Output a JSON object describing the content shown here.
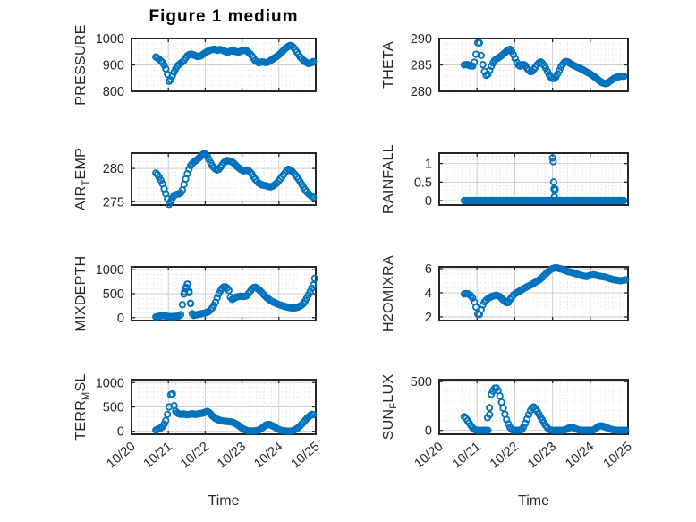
{
  "figure": {
    "title": "Figure 1 medium",
    "background": "#ffffff"
  },
  "colors": {
    "marker": "#0072BD",
    "axes_text": "#262626",
    "frame": "#262626",
    "grid_major": "#cfcfcf",
    "grid_minor": "#dadada"
  },
  "axes": {
    "xlabel": "Time",
    "xlim": [
      0,
      5
    ],
    "xticks": [
      0,
      1,
      2,
      3,
      4,
      5
    ],
    "xtick_labels": [
      "10/20",
      "10/21",
      "10/22",
      "10/23",
      "10/24",
      "10/25"
    ],
    "xminor_step": 0.2,
    "sample_step": 0.045
  },
  "chart_data": [
    {
      "type": "scatter",
      "name": "pressure",
      "ylabel": {
        "pre": "PRESSURE",
        "sub": "",
        "post": ""
      },
      "ylim": [
        800,
        1000
      ],
      "yticks": [
        800,
        900,
        1000
      ],
      "ytick_labels": [
        "800",
        "900",
        "1000"
      ],
      "yminor_step": 20,
      "x": [
        0.66,
        0.75,
        0.85,
        0.92,
        0.98,
        1.03,
        1.07,
        1.12,
        1.18,
        1.25,
        1.33,
        1.42,
        1.5,
        1.58,
        1.65,
        1.72,
        1.8,
        1.88,
        1.95,
        2.05,
        2.15,
        2.25,
        2.32,
        2.4,
        2.5,
        2.6,
        2.7,
        2.8,
        2.9,
        3.0,
        3.08,
        3.15,
        3.25,
        3.35,
        3.45,
        3.55,
        3.65,
        3.75,
        3.85,
        3.95,
        4.05,
        4.15,
        4.25,
        4.32,
        4.4,
        4.5,
        4.6,
        4.7,
        4.8,
        4.88,
        4.97
      ],
      "y": [
        930,
        922,
        908,
        890,
        862,
        832,
        845,
        862,
        880,
        897,
        906,
        916,
        933,
        941,
        940,
        936,
        931,
        934,
        941,
        950,
        957,
        960,
        955,
        959,
        954,
        948,
        953,
        952,
        948,
        954,
        957,
        951,
        938,
        917,
        908,
        912,
        908,
        914,
        924,
        933,
        944,
        959,
        970,
        975,
        966,
        946,
        926,
        913,
        905,
        908,
        916
      ],
      "extra_x": [],
      "extra_y": []
    },
    {
      "type": "scatter",
      "name": "theta",
      "ylabel": {
        "pre": "THETA",
        "sub": "",
        "post": ""
      },
      "ylim": [
        280,
        290
      ],
      "yticks": [
        280,
        285,
        290
      ],
      "ytick_labels": [
        "280",
        "285",
        "290"
      ],
      "yminor_step": 1,
      "x": [
        0.66,
        0.74,
        0.82,
        0.9,
        0.96,
        1.0,
        1.04,
        1.07,
        1.1,
        1.14,
        1.18,
        1.23,
        1.27,
        1.32,
        1.4,
        1.48,
        1.56,
        1.64,
        1.72,
        1.8,
        1.87,
        1.93,
        2.0,
        2.07,
        2.13,
        2.2,
        2.27,
        2.34,
        2.41,
        2.47,
        2.54,
        2.61,
        2.68,
        2.75,
        2.82,
        2.89,
        2.96,
        3.03,
        3.1,
        3.17,
        3.24,
        3.31,
        3.38,
        3.46,
        3.56,
        3.68,
        3.8,
        3.92,
        4.02,
        4.12,
        4.22,
        4.32,
        4.42,
        4.52,
        4.62,
        4.72,
        4.82,
        4.92
      ],
      "y": [
        285,
        285.1,
        284.8,
        284.8,
        286.2,
        288.4,
        290,
        289,
        287.2,
        285.6,
        284.2,
        283.1,
        282.9,
        283.7,
        285.1,
        286,
        286.3,
        286.7,
        287.2,
        287.7,
        288,
        287.5,
        286.4,
        285.2,
        284.7,
        285.1,
        285,
        284.2,
        283.7,
        283.8,
        284.5,
        285.2,
        285.6,
        285.2,
        284.4,
        283.4,
        282.6,
        282.3,
        282.8,
        283.8,
        284.8,
        285.5,
        285.7,
        285.3,
        284.9,
        284.5,
        284.1,
        283.6,
        283.2,
        282.7,
        282.1,
        281.6,
        281.4,
        281.9,
        282.4,
        282.7,
        282.9,
        282.8
      ],
      "extra_x": [],
      "extra_y": []
    },
    {
      "type": "scatter",
      "name": "airtemp",
      "ylabel": {
        "pre": "AIR",
        "sub": "T",
        "post": "EMP"
      },
      "ylim": [
        274.5,
        282.3
      ],
      "yticks": [
        275,
        280
      ],
      "ytick_labels": [
        "275",
        "280"
      ],
      "yminor_step": 1,
      "x": [
        0.66,
        0.72,
        0.78,
        0.84,
        0.9,
        0.96,
        1.02,
        1.08,
        1.14,
        1.22,
        1.3,
        1.36,
        1.42,
        1.48,
        1.55,
        1.62,
        1.7,
        1.78,
        1.86,
        1.93,
        1.99,
        2.06,
        2.13,
        2.2,
        2.28,
        2.35,
        2.43,
        2.51,
        2.59,
        2.67,
        2.76,
        2.86,
        2.95,
        3.05,
        3.15,
        3.25,
        3.35,
        3.45,
        3.55,
        3.65,
        3.76,
        3.86,
        3.96,
        4.06,
        4.16,
        4.25,
        4.33,
        4.42,
        4.52,
        4.62,
        4.72,
        4.82,
        4.9,
        4.97
      ],
      "y": [
        279.3,
        279,
        278.4,
        277.7,
        276.7,
        275.7,
        274.6,
        275.2,
        275.9,
        276.1,
        276.2,
        276.4,
        277.5,
        278.6,
        279.8,
        280.6,
        281,
        281.3,
        281.7,
        282.1,
        282.3,
        281.8,
        281,
        280.3,
        279.9,
        279.7,
        280.3,
        280.9,
        281.2,
        281.1,
        280.9,
        280.3,
        279.9,
        279.6,
        279.8,
        279.3,
        278.4,
        277.8,
        277.5,
        277.4,
        277.2,
        277.4,
        277.9,
        278.6,
        279.3,
        279.9,
        279.7,
        279.2,
        278.5,
        277.6,
        276.7,
        276.1,
        275.8,
        275.5
      ],
      "extra_x": [],
      "extra_y": []
    },
    {
      "type": "scatter",
      "name": "rainfall",
      "ylabel": {
        "pre": "RAINFALL",
        "sub": "",
        "post": ""
      },
      "ylim": [
        -0.12,
        1.28
      ],
      "yticks": [
        0,
        0.5,
        1
      ],
      "ytick_labels": [
        "0",
        "0.5",
        "1"
      ],
      "yminor_step": 0.1,
      "x": [
        0.66,
        4.93
      ],
      "y": [
        0,
        0
      ],
      "extra_x": [
        3.0,
        3.02,
        3.03,
        3.04,
        3.05,
        3.06,
        3.07,
        3.05
      ],
      "extra_y": [
        1.15,
        1.05,
        0.5,
        0.32,
        0.3,
        0.28,
        0.31,
        0.1
      ]
    },
    {
      "type": "scatter",
      "name": "mixdepth",
      "ylabel": {
        "pre": "MIXDEPTH",
        "sub": "",
        "post": ""
      },
      "ylim": [
        -60,
        1060
      ],
      "yticks": [
        0,
        500,
        1000
      ],
      "ytick_labels": [
        "0",
        "500",
        "1000"
      ],
      "yminor_step": 100,
      "x": [
        0.66,
        0.75,
        0.85,
        0.95,
        1.05,
        1.15,
        1.25,
        1.33,
        1.38,
        1.42,
        1.46,
        1.5,
        1.53,
        1.57,
        1.61,
        1.66,
        1.72,
        1.8,
        1.88,
        1.96,
        2.04,
        2.12,
        2.2,
        2.28,
        2.35,
        2.42,
        2.48,
        2.54,
        2.6,
        2.65,
        2.7,
        2.76,
        2.83,
        2.9,
        2.98,
        3.06,
        3.14,
        3.21,
        3.28,
        3.35,
        3.42,
        3.49,
        3.57,
        3.65,
        3.74,
        3.83,
        3.92,
        4.01,
        4.1,
        4.2,
        4.3,
        4.4,
        4.5,
        4.6,
        4.68,
        4.76,
        4.83,
        4.89,
        4.94
      ],
      "y": [
        15,
        30,
        45,
        30,
        20,
        25,
        30,
        40,
        270,
        480,
        580,
        690,
        705,
        500,
        265,
        35,
        50,
        65,
        80,
        90,
        105,
        140,
        210,
        320,
        470,
        570,
        640,
        650,
        615,
        555,
        370,
        390,
        425,
        440,
        450,
        440,
        465,
        540,
        615,
        640,
        610,
        560,
        495,
        430,
        375,
        330,
        300,
        270,
        248,
        225,
        208,
        200,
        212,
        250,
        305,
        415,
        520,
        615,
        690
      ],
      "extra_x": [
        1.44,
        1.48,
        1.52,
        1.56,
        1.6,
        4.97
      ],
      "extra_y": [
        545,
        635,
        700,
        520,
        300,
        820
      ]
    },
    {
      "type": "scatter",
      "name": "h2omixra",
      "ylabel": {
        "pre": "H2OMIXRA",
        "sub": "",
        "post": ""
      },
      "ylim": [
        1.7,
        6.15
      ],
      "yticks": [
        2,
        4,
        6
      ],
      "ytick_labels": [
        "2",
        "4",
        "6"
      ],
      "yminor_step": 0.4,
      "x": [
        0.66,
        0.72,
        0.78,
        0.84,
        0.9,
        0.96,
        1.0,
        1.04,
        1.08,
        1.14,
        1.2,
        1.28,
        1.36,
        1.44,
        1.52,
        1.6,
        1.68,
        1.76,
        1.82,
        1.88,
        1.94,
        2.0,
        2.08,
        2.16,
        2.24,
        2.32,
        2.4,
        2.48,
        2.56,
        2.64,
        2.72,
        2.8,
        2.88,
        2.96,
        3.04,
        3.1,
        3.18,
        3.26,
        3.34,
        3.42,
        3.5,
        3.6,
        3.7,
        3.8,
        3.9,
        4.0,
        4.1,
        4.2,
        4.3,
        4.4,
        4.5,
        4.6,
        4.7,
        4.8,
        4.9,
        4.97
      ],
      "y": [
        3.9,
        3.95,
        3.9,
        3.75,
        3.5,
        3.0,
        2.5,
        2.0,
        2.3,
        2.9,
        3.25,
        3.5,
        3.65,
        3.75,
        3.8,
        3.7,
        3.45,
        3.2,
        3.15,
        3.45,
        3.75,
        3.9,
        4.05,
        4.2,
        4.35,
        4.5,
        4.6,
        4.75,
        4.9,
        5.05,
        5.25,
        5.5,
        5.75,
        5.95,
        6.05,
        6.1,
        6.0,
        5.95,
        5.85,
        5.75,
        5.7,
        5.6,
        5.5,
        5.4,
        5.35,
        5.45,
        5.5,
        5.4,
        5.35,
        5.3,
        5.2,
        5.1,
        5.05,
        5.0,
        5.05,
        5.1
      ],
      "extra_x": [],
      "extra_y": []
    },
    {
      "type": "scatter",
      "name": "terrmsl",
      "ylabel": {
        "pre": "TERR",
        "sub": "M",
        "post": "SL"
      },
      "ylim": [
        -60,
        1060
      ],
      "yticks": [
        0,
        500,
        1000
      ],
      "ytick_labels": [
        "0",
        "500",
        "1000"
      ],
      "yminor_step": 100,
      "x": [
        0.66,
        0.72,
        0.78,
        0.84,
        0.88,
        0.92,
        0.95,
        0.98,
        1.01,
        1.04,
        1.07,
        1.09,
        1.12,
        1.15,
        1.18,
        1.22,
        1.28,
        1.35,
        1.42,
        1.5,
        1.58,
        1.65,
        1.72,
        1.8,
        1.88,
        1.95,
        2.01,
        2.07,
        2.13,
        2.2,
        2.28,
        2.36,
        2.45,
        2.55,
        2.65,
        2.75,
        2.85,
        2.92,
        3.0,
        3.08,
        3.16,
        3.26,
        3.36,
        3.46,
        3.55,
        3.62,
        3.7,
        3.78,
        3.86,
        3.94,
        4.02,
        4.1,
        4.2,
        4.3,
        4.4,
        4.5,
        4.6,
        4.68,
        4.76,
        4.84,
        4.9,
        4.97
      ],
      "y": [
        25,
        45,
        65,
        95,
        140,
        200,
        270,
        360,
        450,
        600,
        780,
        900,
        700,
        545,
        430,
        390,
        360,
        345,
        355,
        340,
        350,
        360,
        345,
        355,
        365,
        375,
        395,
        410,
        370,
        310,
        265,
        235,
        215,
        205,
        200,
        185,
        150,
        110,
        65,
        30,
        10,
        5,
        8,
        25,
        70,
        115,
        145,
        130,
        100,
        60,
        30,
        12,
        5,
        2,
        15,
        60,
        130,
        200,
        265,
        320,
        350,
        335
      ],
      "extra_x": [],
      "extra_y": []
    },
    {
      "type": "scatter",
      "name": "sunflux",
      "ylabel": {
        "pre": "SUN",
        "sub": "F",
        "post": "LUX"
      },
      "ylim": [
        -40,
        520
      ],
      "yticks": [
        0,
        500
      ],
      "ytick_labels": [
        "0",
        "500"
      ],
      "yminor_step": 100,
      "x": [
        0.66,
        0.72,
        0.78,
        0.84,
        0.9,
        0.95,
        1.0,
        1.1,
        1.2,
        1.3,
        1.38,
        1.42,
        1.46,
        1.5,
        1.54,
        1.58,
        1.62,
        1.66,
        1.7,
        1.74,
        1.78,
        1.82,
        1.86,
        1.9,
        1.94,
        2.0,
        2.1,
        2.2,
        2.26,
        2.32,
        2.38,
        2.44,
        2.5,
        2.56,
        2.62,
        2.68,
        2.74,
        2.8,
        2.85,
        2.9,
        3.0,
        3.1,
        3.2,
        3.3,
        3.36,
        3.42,
        3.48,
        3.54,
        3.6,
        3.66,
        3.72,
        3.8,
        3.9,
        4.0,
        4.1,
        4.16,
        4.22,
        4.28,
        4.34,
        4.4,
        4.46,
        4.52,
        4.6,
        4.68,
        4.78,
        4.88,
        4.97
      ],
      "y": [
        140,
        115,
        85,
        48,
        18,
        4,
        0,
        0,
        0,
        0,
        370,
        400,
        430,
        440,
        425,
        390,
        330,
        275,
        220,
        165,
        115,
        75,
        40,
        15,
        3,
        0,
        0,
        10,
        55,
        110,
        170,
        225,
        242,
        215,
        180,
        140,
        100,
        60,
        35,
        10,
        0,
        0,
        0,
        2,
        10,
        22,
        32,
        28,
        18,
        9,
        3,
        0,
        0,
        0,
        5,
        25,
        40,
        48,
        42,
        33,
        24,
        14,
        6,
        2,
        0,
        0,
        0
      ],
      "extra_x": [
        1.28,
        1.33
      ],
      "extra_y": [
        130,
        232
      ]
    }
  ]
}
